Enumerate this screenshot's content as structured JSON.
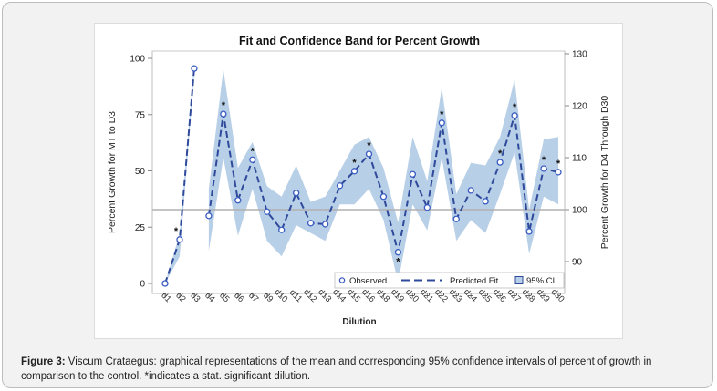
{
  "caption": {
    "label": "Figure 3:",
    "text": " Viscum Crataegus: graphical representations of the mean and corresponding 95% confidence intervals of percent of growth in comparison to the control. *indicates a stat. significant dilution."
  },
  "colors": {
    "band": "#b8cfe8",
    "line": "#2f4a9a",
    "marker": "#3a5cc0",
    "reference": "#b0b0b0",
    "frame": "#f2f2f2"
  },
  "chart_data": {
    "type": "line",
    "title": "Fit and Confidence Band for Percent Growth",
    "xlabel": "Dilution",
    "ylabel_left": "Percent Growth for MT to D3",
    "ylabel_right": "Percent Growth for D4 Through D30",
    "ylim_left": [
      0,
      100
    ],
    "ylim_right": [
      85,
      130
    ],
    "yticks_left": [
      "0",
      "25",
      "50",
      "75",
      "100"
    ],
    "yticks_right": [
      "90",
      "100",
      "110",
      "120",
      "130"
    ],
    "reference_line_right": 100,
    "categories": [
      "d1",
      "d2",
      "d3",
      "d4",
      "d5",
      "d6",
      "d7",
      "d9",
      "d10",
      "d11",
      "d12",
      "d13",
      "d14",
      "d15",
      "d16",
      "d18",
      "d19",
      "d20",
      "d21",
      "d22",
      "d23",
      "d24",
      "d25",
      "d26",
      "d27",
      "d28",
      "d29",
      "d30"
    ],
    "series_left": {
      "name": "Observed (MT to D3)",
      "categories": [
        "d1",
        "d2",
        "d3"
      ],
      "values": [
        0,
        19.5,
        95.5
      ],
      "ci_lower": [
        0,
        12,
        94
      ],
      "ci_upper": [
        0,
        22,
        98
      ]
    },
    "series_right": {
      "name": "Observed (D4 through D30)",
      "categories": [
        "d4",
        "d5",
        "d6",
        "d7",
        "d9",
        "d10",
        "d11",
        "d12",
        "d13",
        "d14",
        "d15",
        "d16",
        "d18",
        "d19",
        "d20",
        "d21",
        "d22",
        "d23",
        "d24",
        "d25",
        "d26",
        "d27",
        "d28",
        "d29",
        "d30"
      ],
      "values": [
        98.8,
        118.4,
        101.8,
        109.6,
        99.6,
        96.1,
        103.2,
        97.4,
        97.2,
        104.6,
        107.4,
        110.7,
        102.5,
        91.8,
        106.8,
        100.4,
        116.7,
        98.2,
        103.7,
        101.6,
        109.1,
        118.1,
        95.8,
        107.9,
        107.2
      ],
      "ci_lower": [
        92,
        110,
        95,
        104,
        94,
        91,
        97,
        95.5,
        94,
        101,
        101,
        104,
        98,
        86,
        101,
        96,
        110,
        94,
        98,
        95.5,
        103,
        111,
        91.5,
        102.5,
        101
      ],
      "ci_upper": [
        104,
        127,
        108,
        113,
        104.5,
        102.5,
        108.5,
        101.5,
        102.5,
        107.5,
        112.5,
        114,
        108,
        97.5,
        114,
        105.5,
        123.5,
        103,
        109,
        108.5,
        114,
        125,
        100,
        113.5,
        114
      ]
    },
    "significant": [
      "d2",
      "d5",
      "d7",
      "d15",
      "d16",
      "d19",
      "d22",
      "d26",
      "d27",
      "d29",
      "d30"
    ],
    "significant_marker": "*",
    "legend": {
      "position": "bottom-right",
      "entries": [
        "Observed",
        "Predicted Fit",
        "95% CI"
      ]
    }
  }
}
